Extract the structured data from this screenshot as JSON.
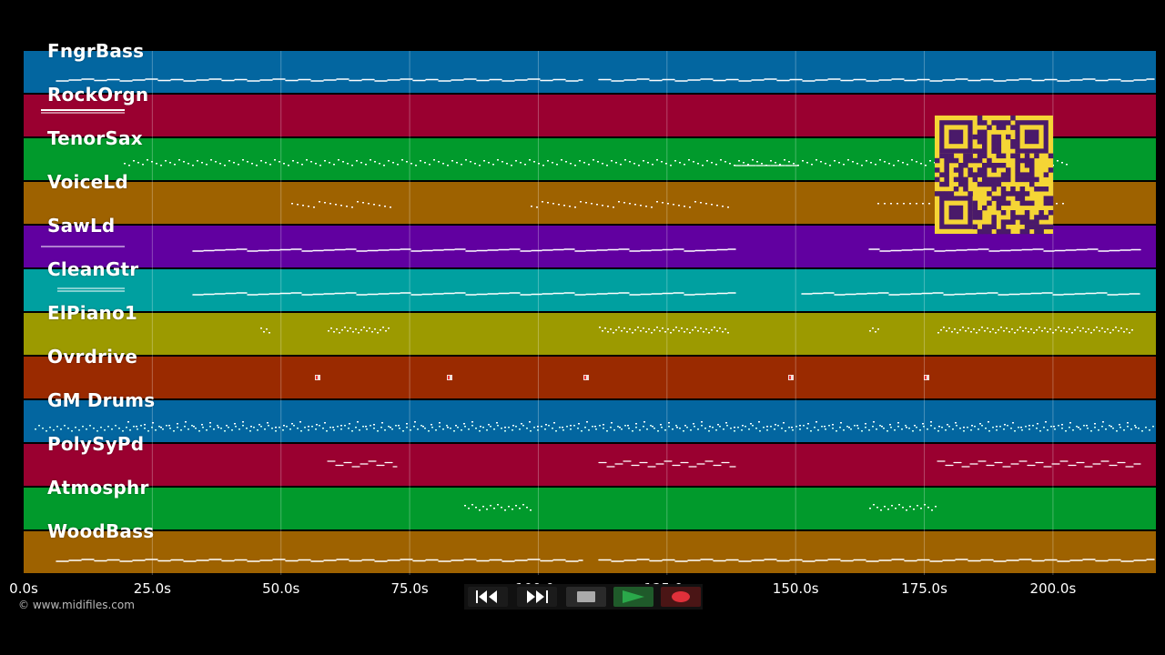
{
  "tracks": [
    {
      "label": "FngrBass",
      "color": "#0366a0"
    },
    {
      "label": "RockOrgn",
      "color": "#9a0030"
    },
    {
      "label": "TenorSax",
      "color": "#019a2c"
    },
    {
      "label": "VoiceLd",
      "color": "#9e6200"
    },
    {
      "label": "SawLd",
      "color": "#6100a0"
    },
    {
      "label": "CleanGtr",
      "color": "#00a0a0"
    },
    {
      "label": "ElPiano1",
      "color": "#9c9a00"
    },
    {
      "label": "Ovrdrive",
      "color": "#9a2a00"
    },
    {
      "label": "GM Drums",
      "color": "#0366a0"
    },
    {
      "label": "PolySyPd",
      "color": "#9a0030"
    },
    {
      "label": "Atmosphr",
      "color": "#019a2c"
    },
    {
      "label": "WoodBass",
      "color": "#9e6200"
    }
  ],
  "timeline": {
    "ticks": [
      {
        "time": 0,
        "label": "0.0s"
      },
      {
        "time": 25,
        "label": "25.0s"
      },
      {
        "time": 50,
        "label": "50.0s"
      },
      {
        "time": 75,
        "label": "75.0s"
      },
      {
        "time": 100,
        "label": "100.0s"
      },
      {
        "time": 125,
        "label": "125.0s"
      },
      {
        "time": 150,
        "label": "150.0s"
      },
      {
        "time": 175,
        "label": "175.0s"
      },
      {
        "time": 200,
        "label": "200.0s"
      }
    ],
    "end_time": 220
  },
  "copyright": "© www.midifiles.com",
  "transport": {
    "rewind": {
      "icon": "rewind-icon"
    },
    "forward": {
      "icon": "fast-forward-icon"
    },
    "stop": {
      "icon": "stop-icon"
    },
    "play": {
      "icon": "play-icon",
      "color": "#2aa84a"
    },
    "record": {
      "icon": "record-icon",
      "color": "#e0303a"
    }
  },
  "qr": {
    "fg": "#4a1a6a",
    "bg": "#f5d535"
  }
}
